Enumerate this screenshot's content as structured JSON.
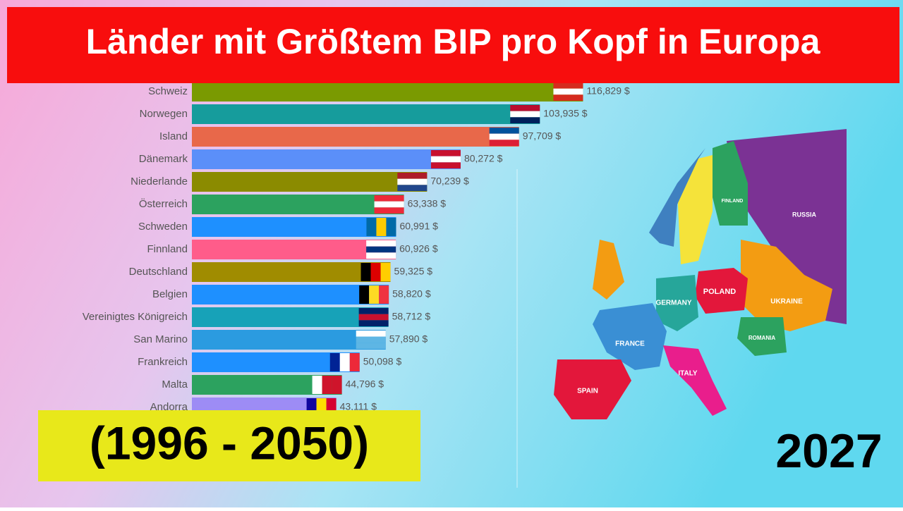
{
  "chart_data": {
    "type": "bar",
    "orientation": "horizontal",
    "title": "Länder mit Größtem BIP pro Kopf in Europa",
    "period": "(1996 - 2050)",
    "year": "2027",
    "categories": [
      "Schweiz",
      "Norwegen",
      "Island",
      "Dänemark",
      "Niederlande",
      "Österreich",
      "Schweden",
      "Finnland",
      "Deutschland",
      "Belgien",
      "Vereinigtes Königreich",
      "San Marino",
      "Frankreich",
      "Malta",
      "Andorra"
    ],
    "values": [
      116829,
      103935,
      97709,
      80272,
      70239,
      63338,
      60991,
      60926,
      59325,
      58820,
      58712,
      57890,
      50098,
      44796,
      43111
    ],
    "value_labels": [
      "116,829 $",
      "103,935 $",
      "97,709 $",
      "80,272 $",
      "70,239 $",
      "63,338 $",
      "60,991 $",
      "60,926 $",
      "59,325 $",
      "58,820 $",
      "58,712 $",
      "57,890 $",
      "50,098 $",
      "44,796 $",
      "43,111 $"
    ],
    "colors": [
      "#7a9a01",
      "#169c9c",
      "#e8684a",
      "#5b8ff9",
      "#8b8b00",
      "#2ca25f",
      "#1e90ff",
      "#ff5c8a",
      "#a08c00",
      "#1e90ff",
      "#17a2b8",
      "#2b9be0",
      "#1e90ff",
      "#2ca25f",
      "#9d8cf5"
    ],
    "xlim": [
      0,
      118000
    ]
  },
  "map": {
    "labels": [
      "RUSSIA",
      "UKRAINE",
      "POLAND",
      "GERMANY",
      "FRANCE",
      "SPAIN",
      "ITALY",
      "ROMANIA",
      "FINLAND"
    ]
  }
}
